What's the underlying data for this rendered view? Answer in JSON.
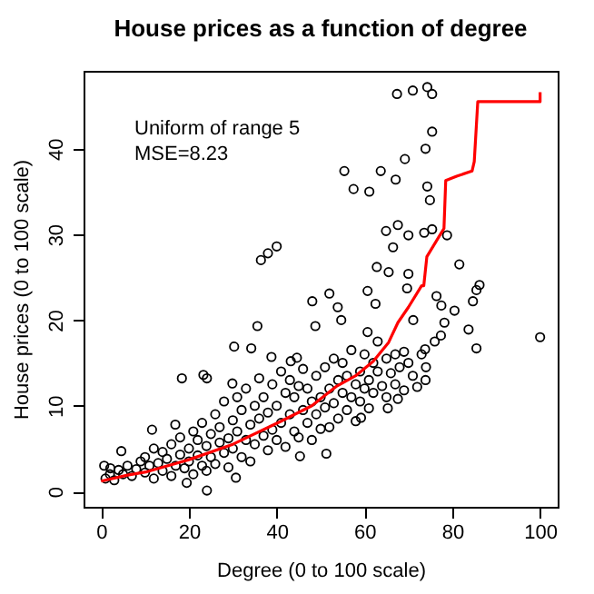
{
  "chart_data": {
    "type": "scatter",
    "title": "House prices as a function of degree",
    "xlabel": "Degree (0 to 100 scale)",
    "ylabel": "House prices (0 to 100 scale)",
    "annotations": [
      "Uniform of range 5",
      "MSE=8.23"
    ],
    "xlim": [
      -4,
      104
    ],
    "ylim": [
      -1.8,
      49.1
    ],
    "xticks": [
      0,
      20,
      40,
      60,
      80,
      100
    ],
    "yticks": [
      0,
      10,
      20,
      30,
      40
    ],
    "grid": false,
    "series": [
      {
        "marker": "circle",
        "color": "#000000",
        "x": [
          67.4,
          71,
          74.3,
          75.4,
          75.4,
          73.9,
          69.2,
          55.4,
          57.5,
          61.1,
          63.7,
          67.1,
          74.3,
          74.9,
          36.4,
          38,
          40,
          64.9,
          67.6,
          70,
          73.6,
          75.4,
          78.8,
          66.5,
          62.8,
          65.5,
          70,
          81.6,
          86.2,
          85.5,
          84.7,
          76.4,
          77.5,
          80.5,
          78.2,
          83.7,
          85.5,
          100,
          73.8,
          77.4,
          71.1,
          69,
          73.9,
          67.6,
          65.3,
          59.2,
          51.3,
          45.3,
          30.7,
          24.1,
          19.5,
          30.3,
          35.6,
          34.2,
          38.8,
          48.1,
          52,
          53.9,
          48.8,
          54.7,
          60.7,
          60.7,
          62.5,
          69.7,
          18.4,
          23.3,
          24.1,
          16.9,
          11.6,
          4.6,
          0.7,
          2.1,
          29.9,
          43.2,
          44.6,
          1,
          2,
          3,
          4,
          5,
          6,
          7,
          8,
          9,
          10,
          10,
          11,
          12,
          12,
          13,
          14,
          14,
          15,
          16,
          16,
          17,
          18,
          18,
          19,
          20,
          20,
          21,
          21,
          22,
          22,
          23,
          23,
          24,
          24,
          25,
          25,
          26,
          26,
          27,
          27,
          28,
          28,
          29,
          29,
          30,
          30,
          31,
          31,
          32,
          32,
          33,
          33,
          34,
          34,
          35,
          35,
          36,
          36,
          37,
          37,
          38,
          38,
          39,
          39,
          40,
          40,
          41,
          41,
          42,
          42,
          43,
          43,
          44,
          44,
          45,
          45,
          46,
          46,
          47,
          47,
          48,
          48,
          49,
          49,
          50,
          50,
          51,
          51,
          52,
          52,
          53,
          53,
          54,
          54,
          55,
          55,
          56,
          56,
          57,
          57,
          58,
          58,
          59,
          59,
          60,
          60,
          61,
          61,
          62,
          62,
          63,
          63,
          64,
          65,
          65,
          66,
          67,
          67,
          68,
          69,
          70,
          71,
          72,
          73,
          74,
          76
        ],
        "values": [
          46.4,
          46.8,
          47.2,
          46.4,
          42,
          40,
          38.8,
          37.4,
          35.3,
          35,
          37.4,
          36.4,
          35.6,
          34,
          27,
          27.8,
          28.6,
          30.4,
          31.1,
          29.9,
          30.2,
          30.6,
          29.9,
          28.5,
          26.2,
          25.6,
          25.4,
          26.5,
          24.1,
          23.5,
          22.2,
          22.8,
          21.7,
          21.1,
          19.7,
          18.9,
          16.7,
          18,
          16.6,
          18.2,
          20,
          16.3,
          13,
          10.8,
          9.7,
          8.6,
          4.4,
          4.1,
          1.6,
          0.1,
          1,
          16.9,
          19.3,
          16.7,
          15.7,
          22.2,
          23.1,
          21.5,
          19.3,
          20,
          18.6,
          23.4,
          21.9,
          23.7,
          13.2,
          13.6,
          13.2,
          7.8,
          7.2,
          4.7,
          3,
          2.7,
          12.6,
          15.2,
          15.6,
          1.5,
          2,
          1.3,
          2.5,
          2,
          3,
          1.8,
          2.6,
          3.5,
          2.2,
          4,
          3,
          1.5,
          5,
          3.3,
          2.4,
          4.6,
          3.8,
          5.5,
          1.8,
          3,
          4.3,
          6.3,
          2.7,
          5,
          3.5,
          7,
          2,
          4.2,
          6,
          3,
          8,
          5.3,
          2.4,
          6.7,
          4,
          9,
          3.2,
          5.7,
          7.5,
          4.5,
          10.5,
          6.2,
          2.8,
          8.3,
          5,
          7,
          11,
          4,
          9.5,
          6,
          12,
          7.8,
          3.5,
          10,
          5.5,
          8.5,
          13.2,
          6.5,
          11,
          9.2,
          4.8,
          7.2,
          12.5,
          10,
          6,
          14,
          8,
          11.5,
          5.2,
          9,
          13,
          7,
          11,
          12.3,
          6.3,
          14.3,
          9.5,
          8,
          12,
          10.5,
          6,
          13.5,
          9,
          11,
          7.3,
          14.5,
          9.8,
          12,
          7.5,
          15.5,
          10.3,
          13,
          8.5,
          11.5,
          15,
          9.5,
          13.5,
          16.5,
          11,
          12.5,
          8.2,
          14,
          10.5,
          16,
          12,
          13,
          9.7,
          15,
          11.5,
          14,
          17.5,
          12.3,
          15.5,
          11,
          13.8,
          16,
          12.5,
          14.5,
          11.8,
          15,
          13.5,
          12.2,
          16,
          14.5,
          17.5
        ]
      },
      {
        "type": "line",
        "marker": "none",
        "color": "#ff0000",
        "x": [
          0,
          6,
          10.5,
          20,
          30,
          41,
          48,
          53.7,
          58,
          62,
          65.5,
          67.6,
          70,
          73,
          73.5,
          74.2,
          78.1,
          78.5,
          81,
          84.5,
          85,
          85.8,
          100,
          100
        ],
        "values": [
          1.2,
          1.9,
          2.3,
          3.7,
          5.5,
          8.2,
          10,
          12.3,
          13.5,
          15.2,
          17.4,
          19.7,
          21.5,
          24,
          24,
          27.4,
          30.7,
          36.3,
          36.8,
          37.4,
          38.5,
          45.5,
          45.5,
          46.6
        ]
      }
    ]
  }
}
